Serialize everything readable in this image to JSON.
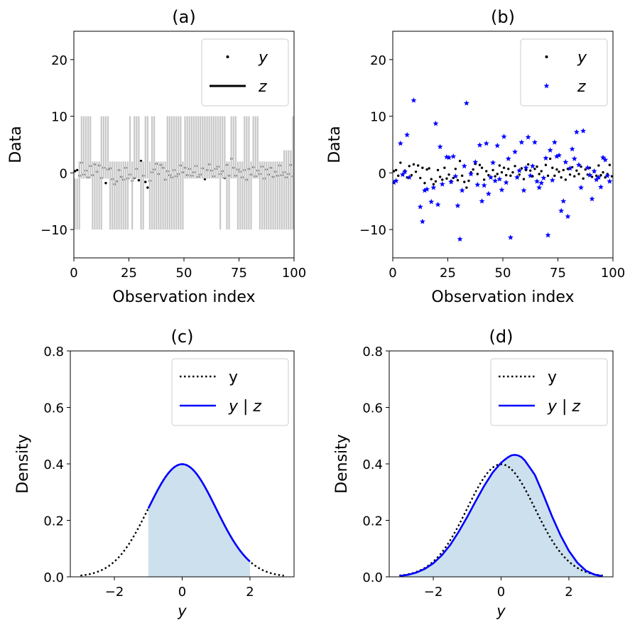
{
  "chart_data": [
    {
      "panel": "a",
      "type": "scatter",
      "title": "(a)",
      "xlabel": "Observation index",
      "ylabel": "Data",
      "xlim": [
        0,
        100
      ],
      "ylim": [
        -15,
        25
      ],
      "xticks": [
        "0",
        "25",
        "50",
        "75",
        "100"
      ],
      "yticks": [
        "−10",
        "0",
        "10",
        "20"
      ],
      "legend": {
        "placement": "top-right",
        "entries": [
          "y",
          "z"
        ]
      },
      "series": [
        {
          "name": "y",
          "marker": "dot",
          "color": "#000000",
          "x": [
            0,
            1,
            2,
            3,
            4,
            5,
            6,
            7,
            8,
            9,
            10,
            11,
            12,
            13,
            14,
            15,
            16,
            17,
            18,
            19,
            20,
            21,
            22,
            23,
            24,
            25,
            26,
            27,
            28,
            29,
            30,
            31,
            32,
            33,
            34,
            35,
            36,
            37,
            38,
            39,
            40,
            41,
            42,
            43,
            44,
            45,
            46,
            47,
            48,
            49,
            50,
            51,
            52,
            53,
            54,
            55,
            56,
            57,
            58,
            59,
            60,
            61,
            62,
            63,
            64,
            65,
            66,
            67,
            68,
            69,
            70,
            71,
            72,
            73,
            74,
            75,
            76,
            77,
            78,
            79,
            80,
            81,
            82,
            83,
            84,
            85,
            86,
            87,
            88,
            89,
            90,
            91,
            92,
            93,
            94,
            95,
            96,
            97,
            98,
            99
          ],
          "y": [
            0.3,
            0.5,
            -0.5,
            1.8,
            -0.3,
            0.4,
            -0.8,
            1.2,
            -0.4,
            1.5,
            0.2,
            1.3,
            -0.9,
            0.9,
            -1.8,
            0.6,
            0.8,
            -1.1,
            -2.0,
            -1.5,
            0.5,
            -0.7,
            -1.2,
            0.9,
            -1.0,
            -0.3,
            -1.4,
            -0.9,
            0.7,
            -1.3,
            2.1,
            -0.5,
            -1.6,
            -2.6,
            -1.4,
            0.1,
            0.6,
            1.6,
            -0.2,
            1.4,
            0.9,
            -1.2,
            0.3,
            -0.4,
            -0.8,
            0.5,
            -0.6,
            -0.2,
            1.3,
            0.1,
            0.9,
            -0.4,
            0.7,
            -0.5,
            0.1,
            1.2,
            -0.7,
            -0.3,
            0.8,
            -1.1,
            0.5,
            1.5,
            0.4,
            -0.6,
            0.7,
            1.1,
            -0.2,
            0.3,
            -0.9,
            1.4,
            -0.5,
            2.5,
            0.9,
            -0.5,
            0.6,
            0.2,
            -0.8,
            0.5,
            -1.2,
            0.7,
            -0.3,
            1.0,
            -0.6,
            0.4,
            -0.2,
            1.1,
            -1.0,
            0.6,
            -0.3,
            0.9,
            -0.7,
            0.2,
            -0.5,
            1.3,
            -0.4,
            0.1,
            -0.8,
            -0.2,
            1.4,
            -0.6
          ]
        },
        {
          "name": "z",
          "type": "intervals",
          "color": "#c8c8c8",
          "x": [
            0,
            1,
            2,
            3,
            4,
            5,
            6,
            7,
            8,
            9,
            10,
            11,
            12,
            13,
            14,
            15,
            16,
            17,
            18,
            19,
            20,
            21,
            22,
            23,
            24,
            25,
            26,
            27,
            28,
            29,
            30,
            31,
            32,
            33,
            34,
            35,
            36,
            37,
            38,
            39,
            40,
            41,
            42,
            43,
            44,
            45,
            46,
            47,
            48,
            49,
            50,
            51,
            52,
            53,
            54,
            55,
            56,
            57,
            58,
            59,
            60,
            61,
            62,
            63,
            64,
            65,
            66,
            67,
            68,
            69,
            70,
            71,
            72,
            73,
            74,
            75,
            76,
            77,
            78,
            79,
            80,
            81,
            82,
            83,
            84,
            85,
            86,
            87,
            88,
            89,
            90,
            91,
            92,
            93,
            94,
            95,
            96,
            97,
            98,
            99
          ],
          "lower": [
            -10,
            -10,
            -10,
            -1,
            -1,
            -1,
            -1,
            -1,
            -10,
            -10,
            -10,
            -10,
            -10,
            -1,
            -1,
            -1,
            -10,
            -10,
            -10,
            -10,
            -10,
            -10,
            -10,
            -10,
            -10,
            -1,
            -10,
            -1,
            -1,
            -1,
            -10,
            -10,
            -1,
            -1,
            -10,
            -10,
            -10,
            -10,
            -10,
            -10,
            -10,
            -10,
            -10,
            -10,
            -10,
            -10,
            -10,
            -10,
            -10,
            -10,
            -1,
            -1,
            -1,
            -1,
            -1,
            -1,
            -1,
            -1,
            -1,
            -1,
            -1,
            -1,
            -1,
            -1,
            -1,
            -1,
            -10,
            -1,
            -1,
            -10,
            -10,
            -1,
            -1,
            -1,
            -10,
            -10,
            -10,
            -10,
            -10,
            -10,
            -10,
            -1,
            -1,
            -1,
            -10,
            -10,
            -10,
            -10,
            -10,
            -10,
            -10,
            -10,
            -10,
            -10,
            -10,
            -10,
            -10,
            -10,
            -10,
            -10
          ],
          "upper": [
            -1,
            -1,
            2,
            10,
            10,
            10,
            10,
            10,
            2,
            2,
            2,
            2,
            10,
            10,
            10,
            10,
            2,
            2,
            2,
            2,
            2,
            2,
            2,
            2,
            2,
            10,
            2,
            10,
            10,
            10,
            2,
            2,
            10,
            10,
            2,
            10,
            10,
            2,
            2,
            2,
            2,
            2,
            10,
            10,
            10,
            10,
            10,
            10,
            10,
            2,
            10,
            10,
            10,
            10,
            10,
            10,
            10,
            10,
            10,
            10,
            10,
            10,
            10,
            10,
            10,
            10,
            10,
            10,
            10,
            2,
            2,
            10,
            10,
            10,
            2,
            2,
            2,
            10,
            10,
            10,
            2,
            10,
            10,
            10,
            2,
            2,
            2,
            2,
            2,
            2,
            2,
            2,
            2,
            2,
            2,
            4,
            4,
            4,
            4,
            10
          ]
        }
      ]
    },
    {
      "panel": "b",
      "type": "scatter",
      "title": "(b)",
      "xlabel": "Observation index",
      "ylabel": "Data",
      "xlim": [
        0,
        100
      ],
      "ylim": [
        -15,
        25
      ],
      "xticks": [
        "0",
        "25",
        "50",
        "75",
        "100"
      ],
      "yticks": [
        "−10",
        "0",
        "10",
        "20"
      ],
      "legend": {
        "placement": "top-right",
        "entries": [
          "y",
          "z"
        ]
      },
      "series": [
        {
          "name": "y",
          "marker": "dot",
          "color": "#000000",
          "x": [
            0,
            1,
            2,
            3,
            4,
            5,
            6,
            7,
            8,
            9,
            10,
            11,
            12,
            13,
            14,
            15,
            16,
            17,
            18,
            19,
            20,
            21,
            22,
            23,
            24,
            25,
            26,
            27,
            28,
            29,
            30,
            31,
            32,
            33,
            34,
            35,
            36,
            37,
            38,
            39,
            40,
            41,
            42,
            43,
            44,
            45,
            46,
            47,
            48,
            49,
            50,
            51,
            52,
            53,
            54,
            55,
            56,
            57,
            58,
            59,
            60,
            61,
            62,
            63,
            64,
            65,
            66,
            67,
            68,
            69,
            70,
            71,
            72,
            73,
            74,
            75,
            76,
            77,
            78,
            79,
            80,
            81,
            82,
            83,
            84,
            85,
            86,
            87,
            88,
            89,
            90,
            91,
            92,
            93,
            94,
            95,
            96,
            97,
            98,
            99
          ],
          "y": [
            0.3,
            0.5,
            -0.5,
            1.8,
            -0.3,
            0.4,
            -0.8,
            1.2,
            -0.4,
            1.5,
            0.2,
            1.3,
            -0.9,
            0.9,
            -1.8,
            0.6,
            0.8,
            -1.1,
            -2.0,
            -1.5,
            0.5,
            -0.7,
            -1.2,
            0.9,
            -1.0,
            -0.3,
            -1.4,
            -0.9,
            0.7,
            -1.3,
            2.1,
            -0.5,
            -1.6,
            -2.6,
            -1.4,
            0.1,
            0.6,
            1.6,
            -0.2,
            1.4,
            0.9,
            -1.2,
            0.3,
            -0.4,
            -0.8,
            0.5,
            -0.6,
            -0.2,
            1.3,
            0.1,
            0.9,
            -0.4,
            0.7,
            -0.5,
            0.1,
            1.2,
            -0.7,
            -0.3,
            0.8,
            -1.1,
            0.5,
            1.5,
            0.4,
            -0.6,
            0.7,
            1.1,
            -0.2,
            0.3,
            -0.9,
            1.4,
            -0.5,
            2.5,
            0.9,
            -0.5,
            0.6,
            0.2,
            -0.8,
            0.5,
            -1.2,
            0.7,
            -0.3,
            1.0,
            -0.6,
            0.4,
            -0.2,
            1.1,
            -1.0,
            0.6,
            -0.3,
            0.9,
            -0.7,
            0.2,
            -0.5,
            1.3,
            -0.4,
            0.1,
            -0.8,
            -0.2,
            1.4,
            -0.6
          ]
        },
        {
          "name": "z",
          "marker": "star",
          "color": "#0000ff",
          "x": [
            0,
            1,
            3,
            4,
            5,
            6,
            7,
            9,
            12,
            13,
            14,
            15,
            17,
            18,
            19,
            20,
            21,
            22,
            24,
            25,
            26,
            27,
            28,
            29,
            30,
            31,
            32,
            33,
            35,
            37,
            38,
            39,
            40,
            41,
            42,
            43,
            44,
            45,
            46,
            47,
            48,
            49,
            50,
            51,
            52,
            53,
            55,
            56,
            57,
            58,
            59,
            60,
            61,
            62,
            63,
            64,
            65,
            66,
            67,
            68,
            69,
            70,
            71,
            72,
            73,
            74,
            75,
            76,
            77,
            78,
            79,
            80,
            81,
            82,
            83,
            84,
            85,
            86,
            88,
            89,
            90,
            91,
            92,
            93,
            94,
            95,
            96,
            97,
            98
          ],
          "y": [
            -1.7,
            -1.4,
            5.2,
            -0.3,
            0.2,
            6.7,
            -0.8,
            12.8,
            -6.0,
            -8.6,
            -3.1,
            -2.9,
            -5.1,
            -2.6,
            8.7,
            -5.6,
            4.6,
            -2.0,
            2.8,
            2.7,
            -1.6,
            2.9,
            -0.6,
            -5.8,
            -11.7,
            -3.1,
            1.2,
            12.3,
            -0.2,
            1.9,
            -2.1,
            4.9,
            -5.0,
            -2.2,
            5.2,
            -3.7,
            -0.8,
            1.8,
            -1.4,
            4.8,
            -1.1,
            -3.0,
            6.4,
            -1.7,
            2.5,
            -11.4,
            3.7,
            -0.8,
            0.4,
            5.4,
            -3.1,
            0.9,
            6.3,
            -0.5,
            1.2,
            5.4,
            -1.5,
            -2.6,
            -1.8,
            -0.9,
            2.6,
            -11.0,
            4.0,
            -1.3,
            5.4,
            2.9,
            3.1,
            -6.7,
            -5.0,
            1.9,
            -7.7,
            0.8,
            4.2,
            2.5,
            7.2,
            1.4,
            -2.6,
            7.4,
            0.9,
            -0.4,
            -4.6,
            0.3,
            -1.2,
            -0.8,
            -2.5,
            2.7,
            2.3,
            -0.5,
            -1.5
          ]
        }
      ]
    },
    {
      "panel": "c",
      "type": "line",
      "title": "(c)",
      "xlabel": "y",
      "ylabel": "Density",
      "xlim": [
        -3.3,
        3.3
      ],
      "ylim": [
        0,
        0.8
      ],
      "xticks": [
        "−2",
        "0",
        "2"
      ],
      "yticks": [
        "0.0",
        "0.2",
        "0.4",
        "0.6",
        "0.8"
      ],
      "legend": {
        "placement": "top-right",
        "entries": [
          "y",
          "y | z"
        ]
      },
      "series": [
        {
          "name": "y",
          "style": "dotted",
          "color": "#000000",
          "curve": "standard-normal",
          "range": [
            -3,
            3
          ]
        },
        {
          "name": "y | z",
          "style": "solid",
          "color": "#0000ff",
          "curve": "standard-normal",
          "range": [
            -1,
            2
          ],
          "fill": "#cde0ee"
        }
      ]
    },
    {
      "panel": "d",
      "type": "line",
      "title": "(d)",
      "xlabel": "y",
      "ylabel": "Density",
      "xlim": [
        -3.3,
        3.3
      ],
      "ylim": [
        0,
        0.8
      ],
      "xticks": [
        "−2",
        "0",
        "2"
      ],
      "yticks": [
        "0.0",
        "0.2",
        "0.4",
        "0.6",
        "0.8"
      ],
      "legend": {
        "placement": "top-right",
        "entries": [
          "y",
          "y | z"
        ]
      },
      "series": [
        {
          "name": "y",
          "style": "dotted",
          "color": "#000000",
          "curve": "standard-normal",
          "range": [
            -3,
            3
          ]
        },
        {
          "name": "y | z",
          "style": "solid",
          "color": "#0000ff",
          "fill": "#cde0ee",
          "x": [
            -3.0,
            -2.75,
            -2.5,
            -2.25,
            -2.0,
            -1.75,
            -1.5,
            -1.25,
            -1.0,
            -0.75,
            -0.5,
            -0.25,
            0.0,
            0.1,
            0.2,
            0.3,
            0.4,
            0.5,
            0.6,
            0.7,
            0.8,
            0.9,
            1.0,
            1.25,
            1.5,
            1.75,
            2.0,
            2.25,
            2.5,
            2.75,
            3.0
          ],
          "y": [
            0.003,
            0.007,
            0.015,
            0.028,
            0.048,
            0.076,
            0.113,
            0.16,
            0.212,
            0.268,
            0.322,
            0.369,
            0.404,
            0.414,
            0.423,
            0.43,
            0.432,
            0.43,
            0.424,
            0.412,
            0.395,
            0.378,
            0.36,
            0.29,
            0.215,
            0.148,
            0.092,
            0.05,
            0.022,
            0.008,
            0.002
          ]
        }
      ]
    }
  ]
}
